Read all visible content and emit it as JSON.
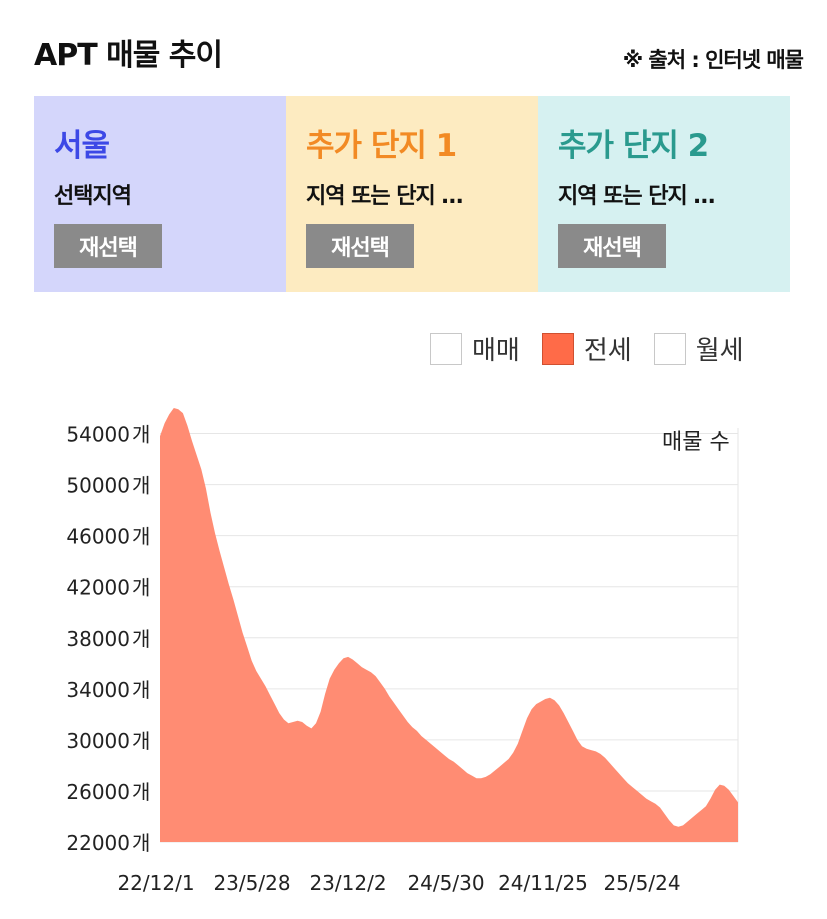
{
  "header": {
    "title": "APT 매물 추이",
    "source": "※ 출처 : 인터넷 매물"
  },
  "cards": [
    {
      "name": "서울",
      "region": "선택지역",
      "button": "재선택",
      "bg": "#d4d6fb",
      "color": "#3c48e6"
    },
    {
      "name": "추가 단지 1",
      "region": "지역 또는 단지 …",
      "button": "재선택",
      "bg": "#fdebc1",
      "color": "#f28a24"
    },
    {
      "name": "추가 단지 2",
      "region": "지역 또는 단지 …",
      "button": "재선택",
      "bg": "#d6f1f1",
      "color": "#2a9a8e"
    }
  ],
  "legend": [
    {
      "label": "매매",
      "checked": false,
      "color": "#ffffff"
    },
    {
      "label": "전세",
      "checked": true,
      "color": "#ff6b48"
    },
    {
      "label": "월세",
      "checked": false,
      "color": "#ffffff"
    }
  ],
  "chart_data": {
    "type": "area",
    "unit_label": "매물 수",
    "y_unit": "개",
    "ylim": [
      22000,
      56000
    ],
    "y_ticks": [
      22000,
      26000,
      30000,
      34000,
      38000,
      42000,
      46000,
      50000,
      54000
    ],
    "x_tick_labels": [
      "22/12/1",
      "23/5/28",
      "23/12/2",
      "24/5/30",
      "24/11/25",
      "25/5/24"
    ],
    "color": "#ff8c73",
    "series": [
      {
        "values": [
          53800,
          54800,
          55500,
          56000,
          55900,
          55600,
          54600,
          53400,
          52300,
          51200,
          49700,
          47800,
          46200,
          44800,
          43500,
          42200,
          41000,
          39700,
          38400,
          37300,
          36200,
          35400,
          34800,
          34200,
          33500,
          32800,
          32100,
          31600,
          31300,
          31400,
          31500,
          31400,
          31100,
          30900,
          31300,
          32200,
          33600,
          34800,
          35500,
          36000,
          36400,
          36500,
          36300,
          36000,
          35700,
          35500,
          35300,
          35000,
          34500,
          34000,
          33400,
          32900,
          32400,
          31900,
          31400,
          31000,
          30700,
          30300,
          30000,
          29700,
          29400,
          29100,
          28800,
          28500,
          28300,
          28000,
          27700,
          27400,
          27200,
          27000,
          27000,
          27100,
          27300,
          27600,
          27900,
          28200,
          28500,
          29000,
          29700,
          30700,
          31700,
          32400,
          32800,
          33000,
          33200,
          33300,
          33100,
          32700,
          32100,
          31400,
          30700,
          30000,
          29500,
          29300,
          29200,
          29100,
          28900,
          28600,
          28200,
          27800,
          27400,
          27000,
          26600,
          26300,
          26000,
          25700,
          25400,
          25200,
          25000,
          24700,
          24200,
          23700,
          23300,
          23200,
          23300,
          23600,
          23900,
          24200,
          24500,
          24800,
          25400,
          26100,
          26500,
          26400,
          26100,
          25600,
          25100
        ]
      }
    ]
  }
}
